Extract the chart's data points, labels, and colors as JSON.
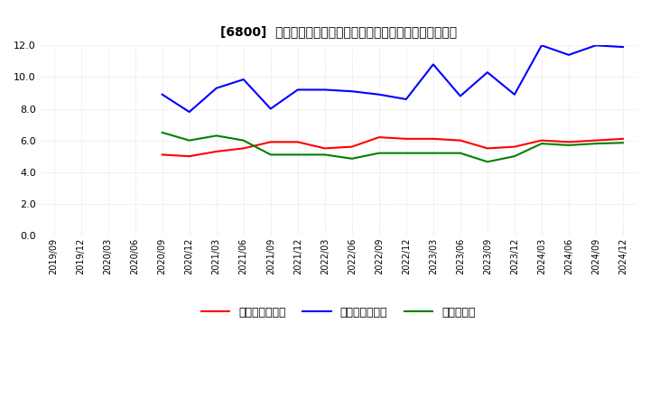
{
  "title": "[6800]  売上債権回転率、買入債務回転率、在庫回転率の推移",
  "x_labels": [
    "2019/09",
    "2019/12",
    "2020/03",
    "2020/06",
    "2020/09",
    "2020/12",
    "2021/03",
    "2021/06",
    "2021/09",
    "2021/12",
    "2022/03",
    "2022/06",
    "2022/09",
    "2022/12",
    "2023/03",
    "2023/06",
    "2023/09",
    "2023/12",
    "2024/03",
    "2024/06",
    "2024/09",
    "2024/12"
  ],
  "receivables_turnover": [
    null,
    null,
    null,
    null,
    5.1,
    5.0,
    5.3,
    5.5,
    5.9,
    5.9,
    5.5,
    5.6,
    6.2,
    6.1,
    6.1,
    6.0,
    5.5,
    5.6,
    6.0,
    5.9,
    6.0,
    6.1
  ],
  "payables_turnover": [
    null,
    null,
    null,
    null,
    8.9,
    7.8,
    9.3,
    9.85,
    8.0,
    9.2,
    9.2,
    9.1,
    8.9,
    8.6,
    10.8,
    8.8,
    10.3,
    8.9,
    12.0,
    11.4,
    12.0,
    11.9
  ],
  "inventory_turnover": [
    null,
    null,
    null,
    null,
    6.5,
    6.0,
    6.3,
    6.0,
    5.1,
    5.1,
    5.1,
    4.85,
    5.2,
    5.2,
    5.2,
    5.2,
    4.65,
    5.0,
    5.8,
    5.7,
    5.8,
    5.85
  ],
  "receivables_color": "#ff0000",
  "payables_color": "#0000ff",
  "inventory_color": "#008000",
  "legend_labels": [
    "売上債権回転率",
    "買入債務回転率",
    "在庫回転率"
  ],
  "ylim": [
    0.0,
    12.0
  ],
  "yticks": [
    0.0,
    2.0,
    4.0,
    6.0,
    8.0,
    10.0,
    12.0
  ],
  "background_color": "#ffffff",
  "grid_color": "#cccccc"
}
